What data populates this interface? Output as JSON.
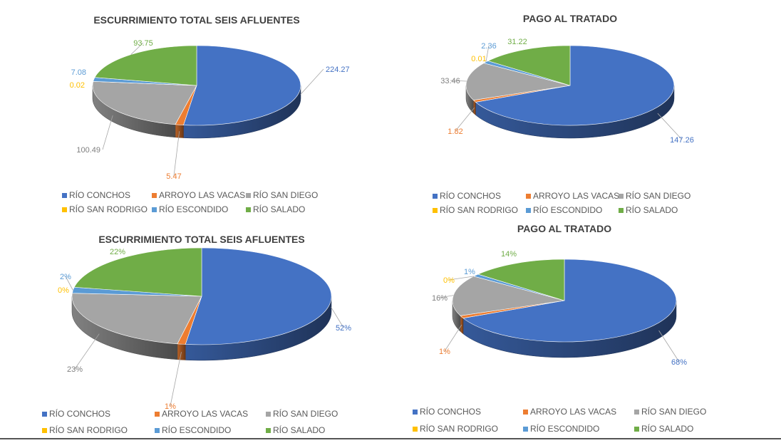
{
  "colors": {
    "RÍO CONCHOS": "#4472c4",
    "ARROYO LAS VACAS": "#ed7d31",
    "RÍO SAN DIEGO": "#a5a5a5",
    "RÍO SAN RODRIGO": "#ffc000",
    "RÍO ESCONDIDO": "#5b9bd5",
    "RÍO SALADO": "#70ad47"
  },
  "chart_data": [
    {
      "type": "pie",
      "title": "ESCURRIMIENTO TOTAL SEIS AFLUENTES",
      "categories": [
        "RÍO CONCHOS",
        "ARROYO LAS VACAS",
        "RÍO SAN DIEGO",
        "RÍO SAN RODRIGO",
        "RÍO ESCONDIDO",
        "RÍO SALADO"
      ],
      "values": [
        224.27,
        5.47,
        100.49,
        0.02,
        7.08,
        93.75
      ],
      "labels": [
        "224.27",
        "5.47",
        "100.49",
        "0.02",
        "7.08",
        "93.75"
      ],
      "legend_position": "bottom"
    },
    {
      "type": "pie",
      "title": "PAGO AL TRATADO",
      "categories": [
        "RÍO CONCHOS",
        "ARROYO LAS VACAS",
        "RÍO SAN DIEGO",
        "RÍO SAN RODRIGO",
        "RÍO ESCONDIDO",
        "RÍO SALADO"
      ],
      "values": [
        147.26,
        1.82,
        33.46,
        0.01,
        2.36,
        31.22
      ],
      "labels": [
        "147.26",
        "1.82",
        "33.46",
        "0.01",
        "2.36",
        "31.22"
      ],
      "legend_position": "bottom"
    },
    {
      "type": "pie",
      "title": "ESCURRIMIENTO TOTAL SEIS AFLUENTES",
      "categories": [
        "RÍO CONCHOS",
        "ARROYO LAS VACAS",
        "RÍO SAN DIEGO",
        "RÍO SAN RODRIGO",
        "RÍO ESCONDIDO",
        "RÍO SALADO"
      ],
      "values": [
        52,
        1,
        23,
        0,
        2,
        22
      ],
      "labels": [
        "52%",
        "1%",
        "23%",
        "0%",
        "2%",
        "22%"
      ],
      "legend_position": "bottom"
    },
    {
      "type": "pie",
      "title": "PAGO AL TRATADO",
      "categories": [
        "RÍO CONCHOS",
        "ARROYO LAS VACAS",
        "RÍO SAN DIEGO",
        "RÍO SAN RODRIGO",
        "RÍO ESCONDIDO",
        "RÍO SALADO"
      ],
      "values": [
        68,
        1,
        16,
        0,
        1,
        14
      ],
      "labels": [
        "68%",
        "1%",
        "16%",
        "0%",
        "1%",
        "14%"
      ],
      "legend_position": "bottom"
    }
  ]
}
